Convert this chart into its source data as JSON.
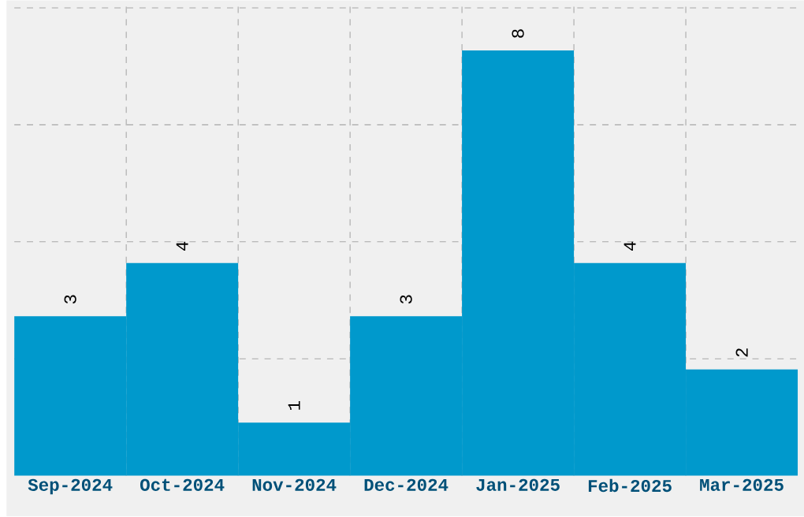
{
  "chart_data": {
    "type": "bar",
    "categories": [
      "Sep-2024",
      "Oct-2024",
      "Nov-2024",
      "Dec-2024",
      "Jan-2025",
      "Feb-2025",
      "Mar-2025"
    ],
    "values": [
      3,
      4,
      1,
      3,
      8,
      4,
      2
    ],
    "color": "#0099cc",
    "ylim": [
      0,
      8.94
    ],
    "yticks": [
      {
        "value": 2.2,
        "label": null
      },
      {
        "value": 4.4,
        "label": null
      },
      {
        "value": 6.6,
        "label": null
      },
      {
        "value": 8.8,
        "label": null
      }
    ],
    "grid": true,
    "data_labels": true
  }
}
